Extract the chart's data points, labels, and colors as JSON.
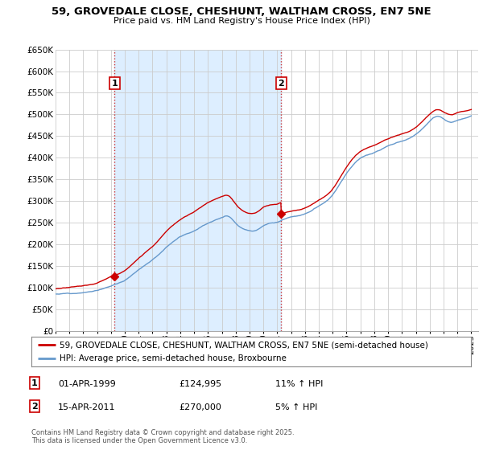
{
  "title": "59, GROVEDALE CLOSE, CHESHUNT, WALTHAM CROSS, EN7 5NE",
  "subtitle": "Price paid vs. HM Land Registry's House Price Index (HPI)",
  "legend_line1": "59, GROVEDALE CLOSE, CHESHUNT, WALTHAM CROSS, EN7 5NE (semi-detached house)",
  "legend_line2": "HPI: Average price, semi-detached house, Broxbourne",
  "annotation1_label": "1",
  "annotation1_date": "01-APR-1999",
  "annotation1_price": "£124,995",
  "annotation1_hpi": "11% ↑ HPI",
  "annotation2_label": "2",
  "annotation2_date": "15-APR-2011",
  "annotation2_price": "£270,000",
  "annotation2_hpi": "5% ↑ HPI",
  "footnote": "Contains HM Land Registry data © Crown copyright and database right 2025.\nThis data is licensed under the Open Government Licence v3.0.",
  "ylim": [
    0,
    650000
  ],
  "ytick_step": 50000,
  "line_color_price": "#cc0000",
  "line_color_hpi": "#6699cc",
  "shade_color": "#ddeeff",
  "background_color": "#ffffff",
  "grid_color": "#cccccc",
  "annotation_vline_color": "#cc3333",
  "sale1_year": 1999.25,
  "sale2_year": 2011.29,
  "sale1_value": 124995,
  "sale2_value": 270000
}
